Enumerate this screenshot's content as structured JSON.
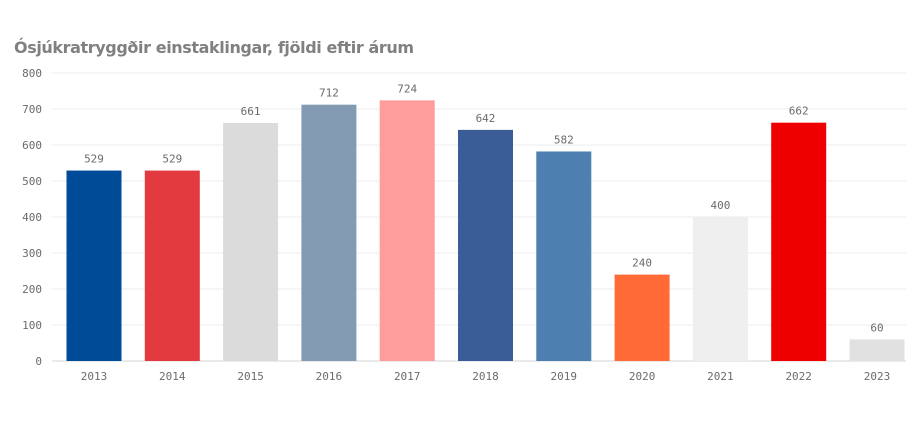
{
  "chart_data": {
    "type": "bar",
    "title": "Ósjúkratryggðir einstaklingar, fjöldi eftir árum",
    "xlabel": "",
    "ylabel": "",
    "categories": [
      "2013",
      "2014",
      "2015",
      "2016",
      "2017",
      "2018",
      "2019",
      "2020",
      "2021",
      "2022",
      "2023"
    ],
    "values": [
      529,
      529,
      661,
      712,
      724,
      642,
      582,
      240,
      400,
      662,
      60
    ],
    "colors": [
      "#004b98",
      "#e23a3e",
      "#dbdbdb",
      "#829ab2",
      "#ff9c9c",
      "#3b5d97",
      "#4d80b0",
      "#ff6a37",
      "#efefef",
      "#ee0000",
      "#e1e1e1"
    ],
    "ylim": [
      0,
      800
    ],
    "yticks": [
      0,
      100,
      200,
      300,
      400,
      500,
      600,
      700,
      800
    ],
    "grid": true,
    "legend": "none"
  }
}
